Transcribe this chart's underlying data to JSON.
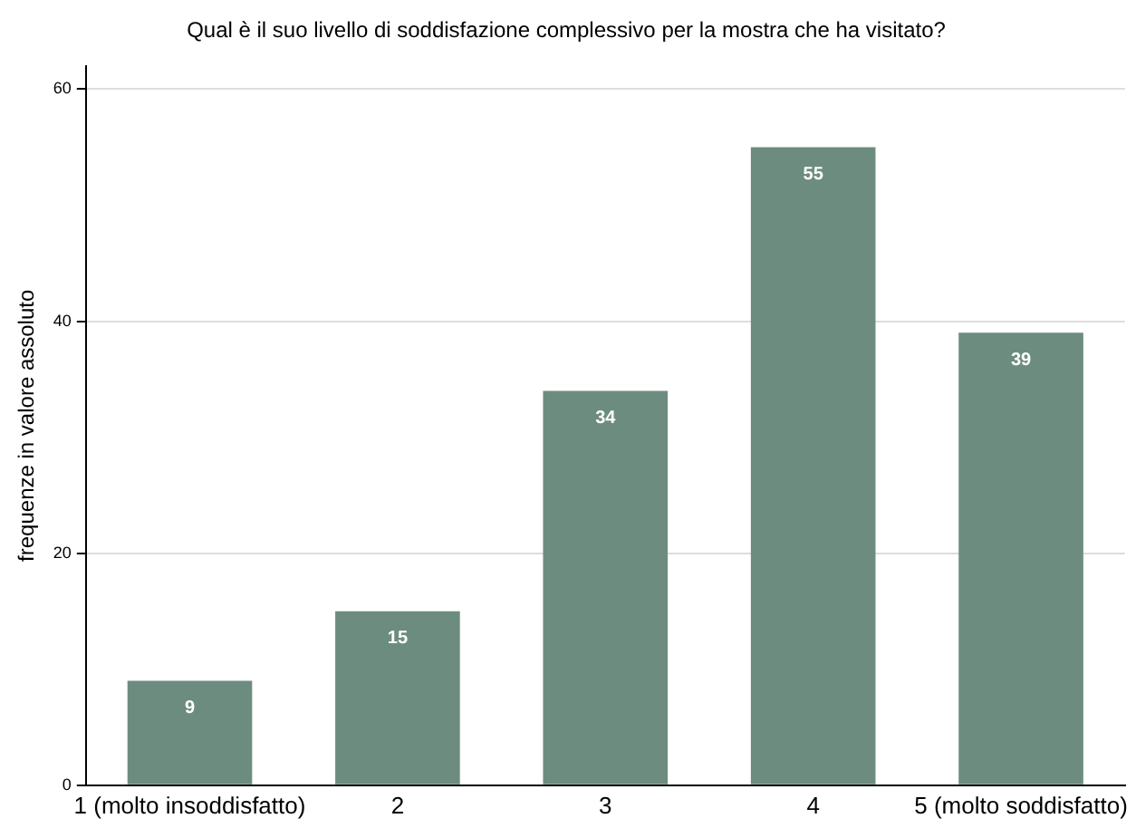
{
  "chart_data": {
    "type": "bar",
    "title": "Qual è il suo livello di soddisfazione complessivo per la mostra che ha visitato?",
    "ylabel": "frequenze in valore assoluto",
    "categories": [
      "1 (molto insoddisfatto)",
      "2",
      "3",
      "4",
      "5 (molto soddisfatto)"
    ],
    "values": [
      9,
      15,
      34,
      55,
      39
    ],
    "color": "#6d8c80",
    "ylim": [
      0,
      62
    ],
    "yticks": [
      0,
      20,
      40,
      60
    ],
    "grid": "y",
    "legend": false,
    "data_labels": true
  }
}
